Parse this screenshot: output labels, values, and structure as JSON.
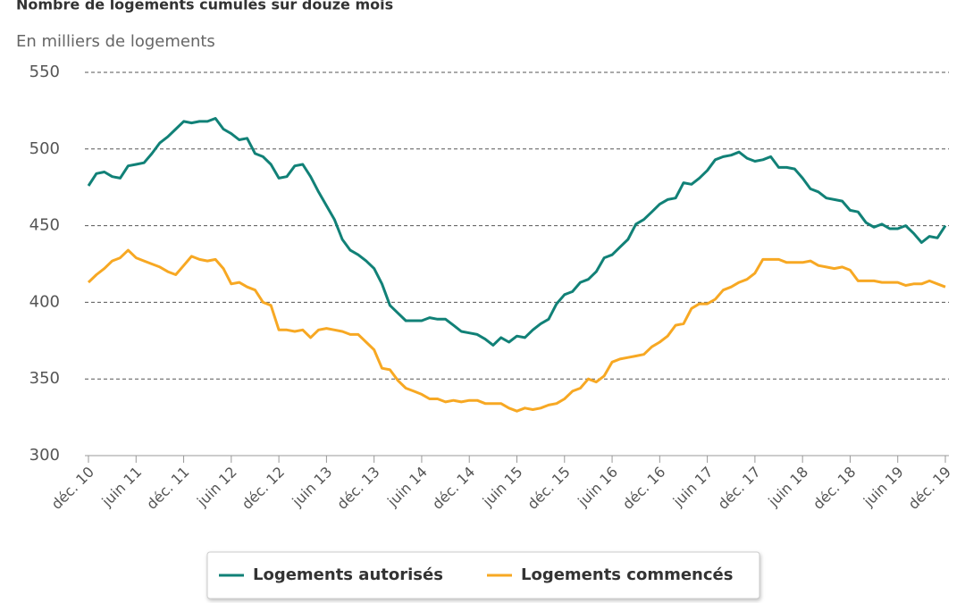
{
  "chart_data": {
    "type": "line",
    "title": "Nombre de logements cumulés sur douze mois",
    "subtitle": "En milliers de logements",
    "categories": [
      "déc. 10",
      null,
      null,
      null,
      null,
      null,
      "juin 11",
      null,
      null,
      null,
      null,
      null,
      "déc. 11",
      null,
      null,
      null,
      null,
      null,
      "juin 12",
      null,
      null,
      null,
      null,
      null,
      "déc. 12",
      null,
      null,
      null,
      null,
      null,
      "juin 13",
      null,
      null,
      null,
      null,
      null,
      "déc. 13",
      null,
      null,
      null,
      null,
      null,
      "juin 14",
      null,
      null,
      null,
      null,
      null,
      "déc. 14",
      null,
      null,
      null,
      null,
      null,
      "juin 15",
      null,
      null,
      null,
      null,
      null,
      "déc. 15",
      null,
      null,
      null,
      null,
      null,
      "juin 16",
      null,
      null,
      null,
      null,
      null,
      "déc. 16",
      null,
      null,
      null,
      null,
      null,
      "juin 17",
      null,
      null,
      null,
      null,
      null,
      "déc. 17",
      null,
      null,
      null,
      null,
      null,
      "juin 18",
      null,
      null,
      null,
      null,
      null,
      "déc. 18",
      null,
      null,
      null,
      null,
      null,
      "juin 19",
      null,
      null,
      null,
      null,
      null,
      "déc. 19"
    ],
    "series": [
      {
        "name": "Logements autorisés",
        "color": "#118177",
        "values": [
          476,
          484,
          485,
          482,
          481,
          489,
          490,
          491,
          497,
          504,
          508,
          513,
          518,
          517,
          518,
          518,
          520,
          513,
          510,
          506,
          507,
          497,
          495,
          490,
          481,
          482,
          489,
          490,
          482,
          472,
          463,
          454,
          441,
          434,
          431,
          427,
          422,
          412,
          398,
          393,
          388,
          388,
          388,
          390,
          389,
          389,
          385,
          381,
          380,
          379,
          376,
          372,
          377,
          374,
          378,
          377,
          382,
          386,
          389,
          399,
          405,
          407,
          413,
          415,
          420,
          429,
          431,
          436,
          441,
          451,
          454,
          459,
          464,
          467,
          468,
          478,
          477,
          481,
          486,
          493,
          495,
          496,
          498,
          494,
          492,
          493,
          495,
          488,
          488,
          487,
          481,
          474,
          472,
          468,
          467,
          466,
          460,
          459,
          452,
          449,
          451,
          448,
          448,
          450,
          445,
          439,
          443,
          442,
          450
        ]
      },
      {
        "name": "Logements commencés",
        "color": "#f7a823",
        "values": [
          413,
          418,
          422,
          427,
          429,
          434,
          429,
          427,
          425,
          423,
          420,
          418,
          424,
          430,
          428,
          427,
          428,
          422,
          412,
          413,
          410,
          408,
          400,
          398,
          382,
          382,
          381,
          382,
          377,
          382,
          383,
          382,
          381,
          379,
          379,
          374,
          369,
          357,
          356,
          349,
          344,
          342,
          340,
          337,
          337,
          335,
          336,
          335,
          336,
          336,
          334,
          334,
          334,
          331,
          329,
          331,
          330,
          331,
          333,
          334,
          337,
          342,
          344,
          350,
          348,
          352,
          361,
          363,
          364,
          365,
          366,
          371,
          374,
          378,
          385,
          386,
          396,
          399,
          399,
          402,
          408,
          410,
          413,
          415,
          419,
          428,
          428,
          428,
          426,
          426,
          426,
          427,
          424,
          423,
          422,
          423,
          421,
          414,
          414,
          414,
          413,
          413,
          413,
          411,
          412,
          412,
          414,
          412,
          410
        ]
      }
    ],
    "ylim": [
      300,
      550
    ],
    "yticks": [
      300,
      350,
      400,
      450,
      500,
      550
    ],
    "grid": true
  }
}
